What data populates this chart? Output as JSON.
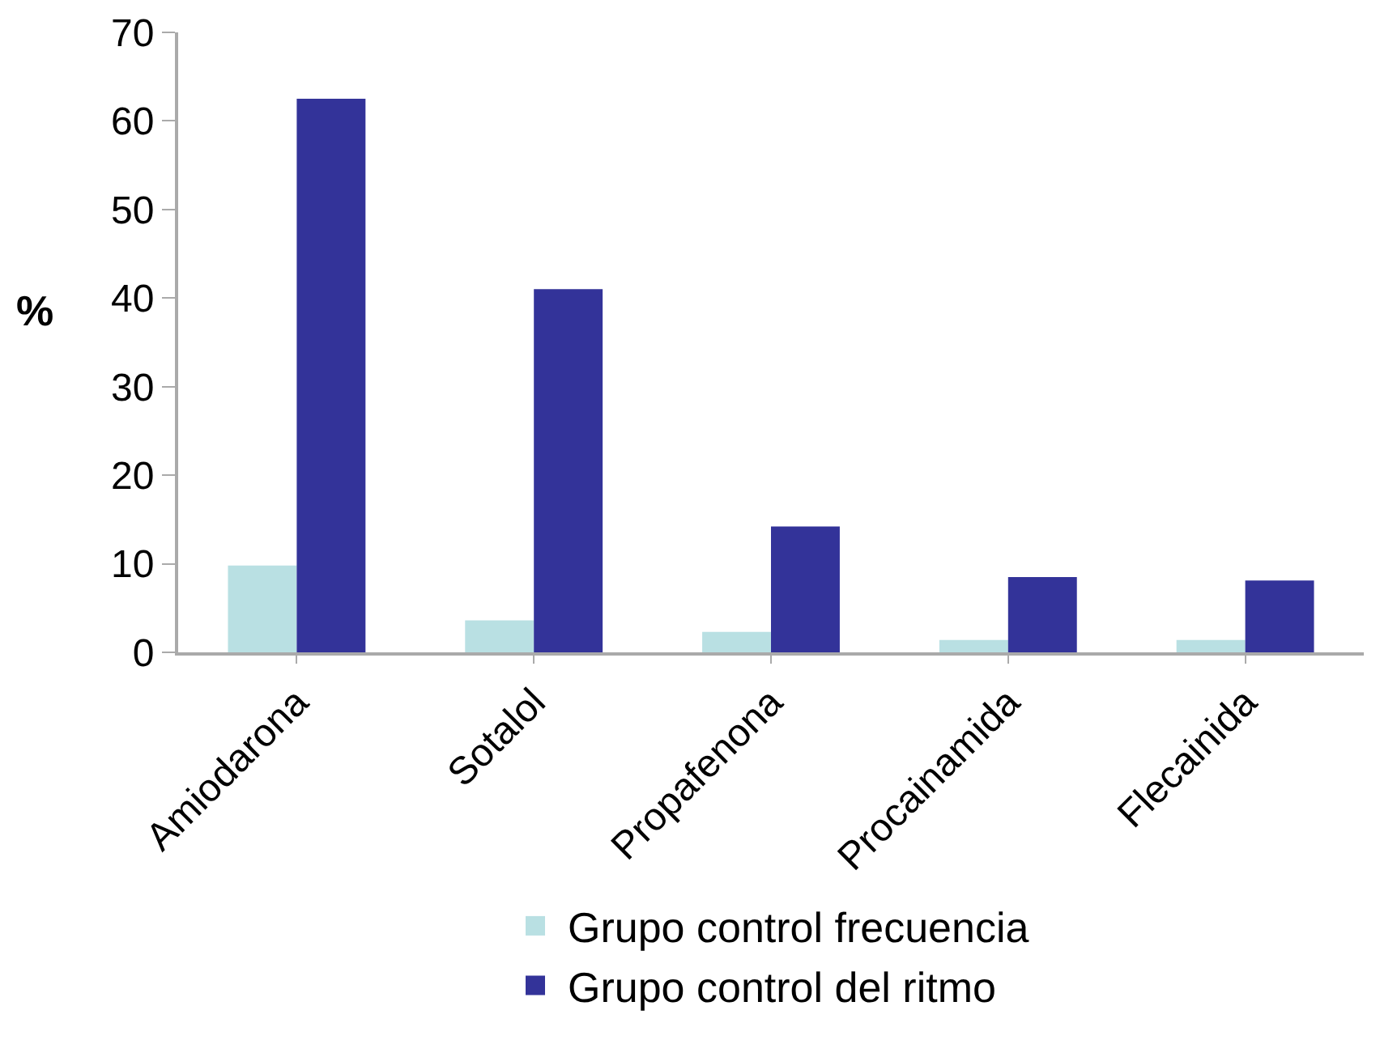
{
  "chart_data": {
    "type": "bar",
    "ylabel": "%",
    "categories": [
      "Amiodarona",
      "Sotalol",
      "Propafenona",
      "Procainamida",
      "Flecainida"
    ],
    "series": [
      {
        "name": "Grupo control frecuencia",
        "color": "#b9e0e3",
        "values": [
          9.8,
          3.6,
          2.3,
          1.4,
          1.4
        ]
      },
      {
        "name": "Grupo control del ritmo",
        "color": "#333399",
        "values": [
          62.5,
          41,
          14.2,
          8.5,
          8.1
        ]
      }
    ],
    "ylim": [
      0,
      70
    ],
    "yticks": [
      0,
      10,
      20,
      30,
      40,
      50,
      60,
      70
    ],
    "grid": false,
    "legend": "bottom"
  }
}
